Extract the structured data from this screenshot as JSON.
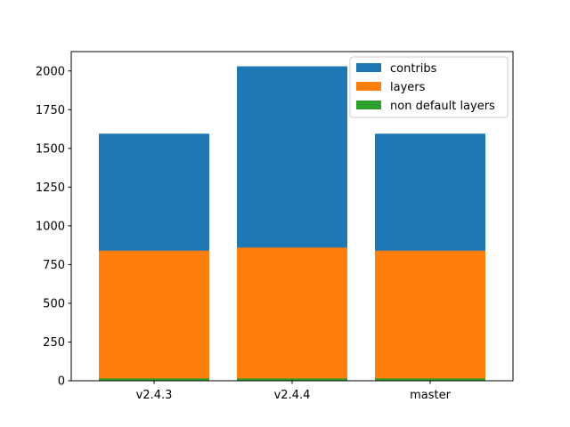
{
  "chart_data": {
    "type": "bar",
    "stacked": "overlay",
    "categories": [
      "v2.4.3",
      "v2.4.4",
      "master"
    ],
    "series": [
      {
        "name": "contribs",
        "values": [
          1595,
          2030,
          1595
        ],
        "color": "#1f77b4"
      },
      {
        "name": "layers",
        "values": [
          840,
          860,
          840
        ],
        "color": "#ff7f0e"
      },
      {
        "name": "non default layers",
        "values": [
          15,
          15,
          15
        ],
        "color": "#2ca02c"
      }
    ],
    "ylim": [
      0,
      2125
    ],
    "yticks": [
      0,
      250,
      500,
      750,
      1000,
      1250,
      1500,
      1750,
      2000
    ],
    "ytick_labels": [
      "0",
      "250",
      "500",
      "750",
      "1000",
      "1250",
      "1500",
      "1750",
      "2000"
    ],
    "grid": false,
    "legend_position": "top-right"
  }
}
